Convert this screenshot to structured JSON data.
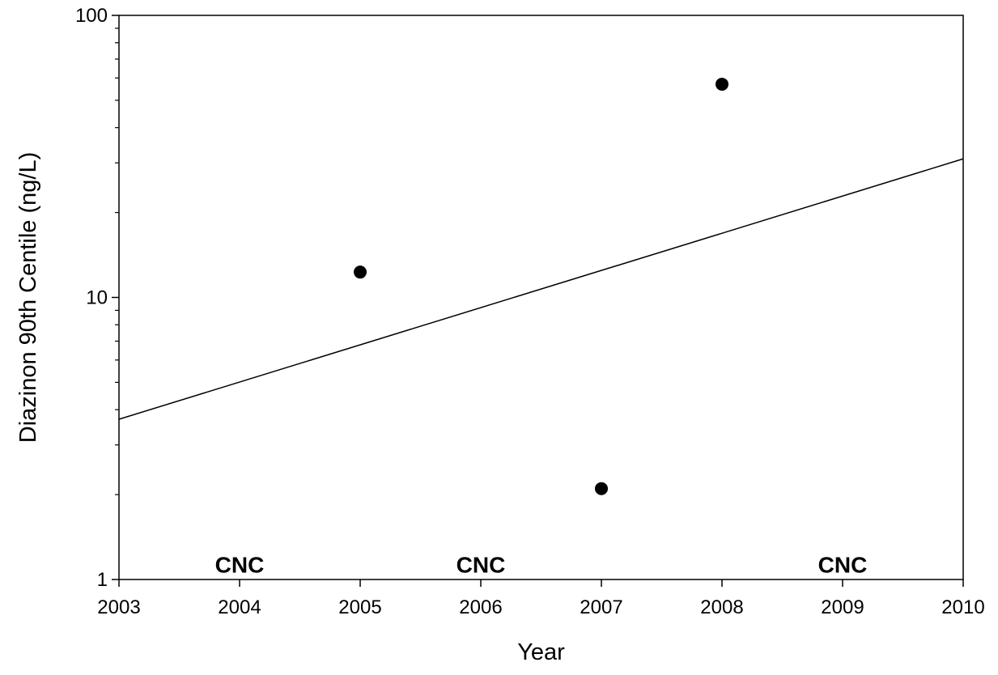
{
  "chart_data": {
    "type": "scatter",
    "title": "",
    "xlabel": "Year",
    "ylabel": "Diazinon 90th Centile (ng/L)",
    "xlim": [
      2003,
      2010
    ],
    "ylim": [
      1,
      100
    ],
    "y_scale": "log",
    "grid": false,
    "x_ticks": [
      "2003",
      "2004",
      "2005",
      "2006",
      "2007",
      "2008",
      "2009",
      "2010"
    ],
    "y_ticks": [
      "1",
      "10",
      "100"
    ],
    "series": [
      {
        "points": [
          {
            "x": 2005,
            "y": 12.3
          },
          {
            "x": 2007,
            "y": 2.1
          },
          {
            "x": 2008,
            "y": 57
          }
        ]
      }
    ],
    "trend_line": {
      "points": [
        {
          "x": 2003,
          "y": 3.7
        },
        {
          "x": 2010,
          "y": 31
        }
      ]
    },
    "annotations": [
      {
        "text": "CNC",
        "x": 2004,
        "y": 1.13
      },
      {
        "text": "CNC",
        "x": 2006,
        "y": 1.13
      },
      {
        "text": "CNC",
        "x": 2009,
        "y": 1.13
      }
    ],
    "colors": {
      "marker": "#000000",
      "line": "#000000",
      "axes": "#000000"
    }
  }
}
